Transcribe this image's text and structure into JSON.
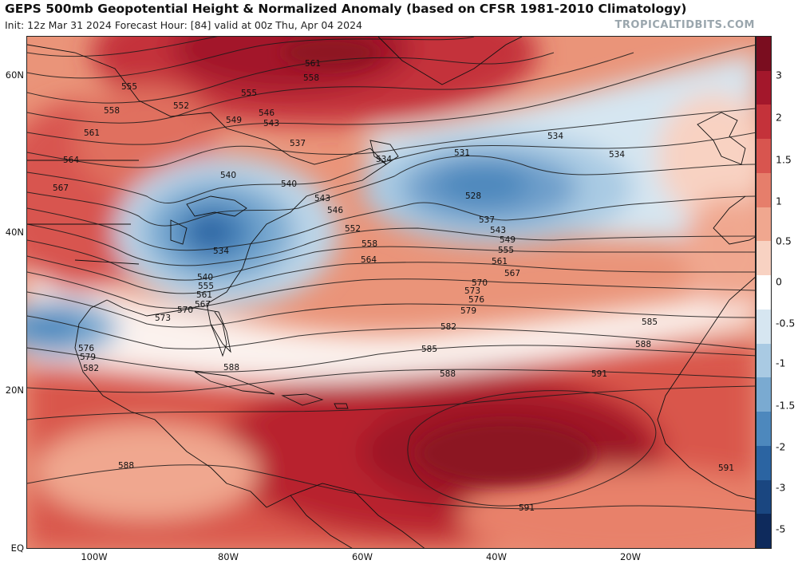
{
  "header": {
    "title": "GEPS 500mb Geopotential Height & Normalized Anomaly (based on CFSR 1981-2010 Climatology)",
    "subtitle": "Init: 12z Mar 31 2024   Forecast Hour: [84]   valid at 00z Thu, Apr 04 2024",
    "brand": "TROPICALTIDBITS.COM"
  },
  "axes": {
    "lat_labels": [
      "60N",
      "40N",
      "20N",
      "EQ"
    ],
    "lon_labels": [
      "100W",
      "80W",
      "60W",
      "40W",
      "20W"
    ]
  },
  "colorbar": {
    "labels": [
      "3",
      "2",
      "1.5",
      "1",
      "0.5",
      "0",
      "-0.5",
      "-1",
      "-1.5",
      "-2",
      "-3",
      "-5"
    ],
    "colors": [
      "#7a0d1f",
      "#a3172b",
      "#c4323a",
      "#d8554f",
      "#e67e6b",
      "#f0a78f",
      "#f8d2c2",
      "#ffffff",
      "#d6e6f1",
      "#a9cae3",
      "#7aaad1",
      "#4d88bd",
      "#2b64a2",
      "#1a4680",
      "#0e2a5c"
    ]
  },
  "contour_labels": [
    "561",
    "558",
    "555",
    "552",
    "549",
    "546",
    "543",
    "540",
    "537",
    "534",
    "531",
    "528",
    "564",
    "567",
    "570",
    "573",
    "576",
    "579",
    "582",
    "585",
    "588",
    "591"
  ],
  "colors": {
    "contour": "#1a1a1a",
    "coast": "#111111",
    "background": "#ffffff"
  }
}
